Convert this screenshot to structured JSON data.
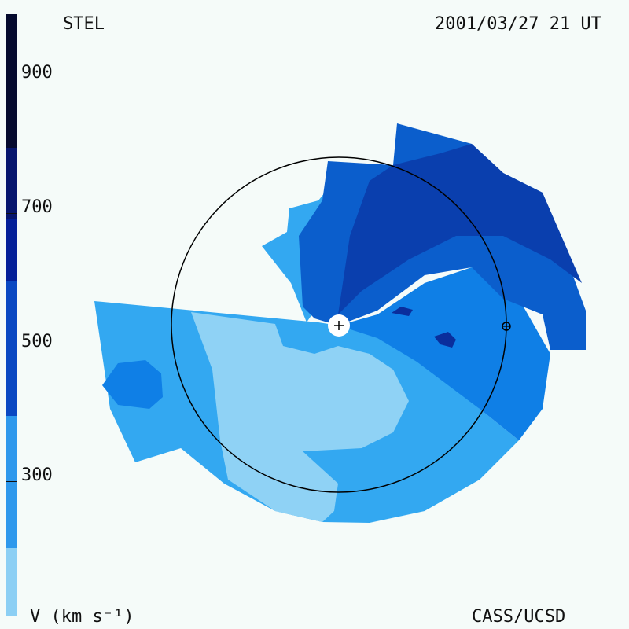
{
  "header": {
    "source": "STEL",
    "timestamp": "2001/03/27 21 UT"
  },
  "footer": {
    "units_label": "V (km s⁻¹)",
    "credit": "CASS/UCSD"
  },
  "colorbar": {
    "ticks": [
      "900",
      "700",
      "500",
      "300"
    ],
    "colors": [
      "#050a2e",
      "#07166e",
      "#031f98",
      "#0a48c2",
      "#0e6fdc",
      "#2e98ec",
      "#8ccff4"
    ]
  },
  "map_colors": {
    "lightest": "#8fd2f5",
    "light": "#33a8f1",
    "medium": "#0f7fe6",
    "mid_dark": "#0b5ecc",
    "dark": "#0a3fae",
    "darker": "#0a2e9c",
    "sun_marker": "#ffffff",
    "orbit": "#000000"
  }
}
